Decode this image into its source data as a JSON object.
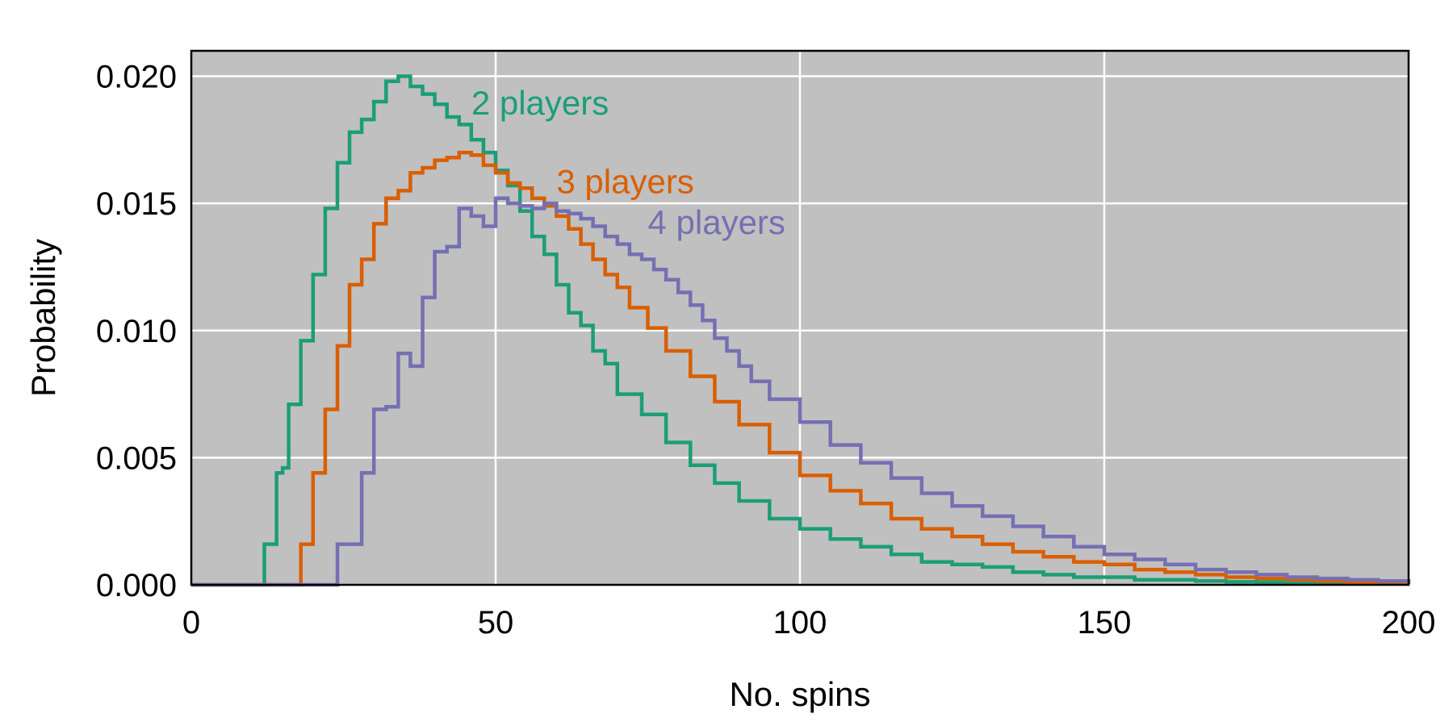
{
  "chart_data": {
    "type": "line",
    "title": "",
    "xlabel": "No. spins",
    "ylabel": "Probability",
    "xlim": [
      0,
      200
    ],
    "ylim": [
      0,
      0.021
    ],
    "xticks": [
      0,
      50,
      100,
      150,
      200
    ],
    "xtick_labels": [
      "0",
      "50",
      "100",
      "150",
      "200"
    ],
    "yticks": [
      0,
      0.005,
      0.01,
      0.015,
      0.02
    ],
    "ytick_labels": [
      "0.000",
      "0.005",
      "0.010",
      "0.015",
      "0.020"
    ],
    "grid": true,
    "legend": "inline",
    "background": "#c0c0c0",
    "series": [
      {
        "name": "2 players",
        "color": "#1b9e77",
        "label_at": [
          46,
          0.0185
        ],
        "x": [
          0,
          12,
          13,
          14,
          15,
          16,
          18,
          20,
          22,
          24,
          26,
          28,
          30,
          32,
          34,
          36,
          38,
          40,
          42,
          44,
          46,
          48,
          50,
          52,
          54,
          56,
          58,
          60,
          62,
          64,
          66,
          68,
          70,
          74,
          78,
          82,
          86,
          90,
          95,
          100,
          105,
          110,
          115,
          120,
          125,
          130,
          135,
          140,
          145,
          150,
          155,
          160,
          165,
          170,
          175,
          180,
          185,
          190,
          195,
          200
        ],
        "y": [
          0,
          0.0016,
          0.0016,
          0.0044,
          0.0046,
          0.0071,
          0.0096,
          0.0122,
          0.0148,
          0.0166,
          0.0178,
          0.0183,
          0.019,
          0.0198,
          0.02,
          0.0196,
          0.0193,
          0.0189,
          0.0184,
          0.0181,
          0.0175,
          0.017,
          0.0163,
          0.0157,
          0.0147,
          0.0137,
          0.013,
          0.0118,
          0.0107,
          0.0102,
          0.0092,
          0.0087,
          0.0075,
          0.0067,
          0.0056,
          0.0047,
          0.004,
          0.0033,
          0.0026,
          0.0022,
          0.0018,
          0.0015,
          0.0012,
          0.0009,
          0.0008,
          0.0007,
          0.0005,
          0.0004,
          0.0003,
          0.0003,
          0.0002,
          0.0002,
          0.00015,
          0.00012,
          0.0001,
          8e-05,
          6e-05,
          5e-05,
          4e-05,
          3e-05
        ]
      },
      {
        "name": "3 players",
        "color": "#d95f02",
        "label_at": [
          60,
          0.0154
        ],
        "x": [
          0,
          18,
          19,
          20,
          22,
          24,
          26,
          28,
          30,
          32,
          34,
          36,
          38,
          40,
          42,
          44,
          46,
          48,
          50,
          52,
          54,
          56,
          58,
          60,
          62,
          64,
          66,
          68,
          70,
          72,
          75,
          78,
          82,
          86,
          90,
          95,
          100,
          105,
          110,
          115,
          120,
          125,
          130,
          135,
          140,
          145,
          150,
          155,
          160,
          165,
          170,
          175,
          180,
          185,
          190,
          195,
          200
        ],
        "y": [
          0,
          0.0016,
          0.0016,
          0.0044,
          0.0069,
          0.0094,
          0.0118,
          0.0128,
          0.0142,
          0.0152,
          0.0155,
          0.0162,
          0.0164,
          0.0167,
          0.0168,
          0.017,
          0.0169,
          0.0165,
          0.0162,
          0.0158,
          0.0156,
          0.0152,
          0.0149,
          0.0145,
          0.014,
          0.0134,
          0.0128,
          0.0122,
          0.0117,
          0.0109,
          0.0101,
          0.0092,
          0.0082,
          0.0072,
          0.0063,
          0.0052,
          0.0043,
          0.0037,
          0.0032,
          0.0026,
          0.0022,
          0.0019,
          0.0016,
          0.0013,
          0.0011,
          0.0009,
          0.0008,
          0.0006,
          0.0005,
          0.0004,
          0.0003,
          0.00025,
          0.0002,
          0.00015,
          0.0001,
          8e-05,
          6e-05
        ]
      },
      {
        "name": "4 players",
        "color": "#7570b3",
        "label_at": [
          75,
          0.0138
        ],
        "x": [
          0,
          24,
          25,
          28,
          30,
          32,
          34,
          36,
          38,
          40,
          42,
          44,
          46,
          48,
          50,
          52,
          54,
          56,
          58,
          60,
          62,
          64,
          66,
          68,
          70,
          72,
          74,
          76,
          78,
          80,
          82,
          84,
          86,
          88,
          90,
          92,
          95,
          100,
          105,
          110,
          115,
          120,
          125,
          130,
          135,
          140,
          145,
          150,
          155,
          160,
          165,
          170,
          175,
          180,
          185,
          190,
          195,
          200
        ],
        "y": [
          0,
          0.0016,
          0.0016,
          0.0044,
          0.0069,
          0.007,
          0.0091,
          0.0086,
          0.0113,
          0.0131,
          0.0133,
          0.0148,
          0.0145,
          0.0141,
          0.0152,
          0.015,
          0.0149,
          0.0148,
          0.015,
          0.0147,
          0.0146,
          0.0144,
          0.0141,
          0.0137,
          0.0134,
          0.013,
          0.0128,
          0.0124,
          0.012,
          0.0115,
          0.011,
          0.0104,
          0.0097,
          0.0092,
          0.0086,
          0.008,
          0.0073,
          0.0064,
          0.0055,
          0.0048,
          0.0042,
          0.0036,
          0.0031,
          0.0027,
          0.0023,
          0.0019,
          0.0015,
          0.0012,
          0.001,
          0.0008,
          0.0006,
          0.0005,
          0.0004,
          0.0003,
          0.00025,
          0.0002,
          0.00015,
          0.0001
        ]
      }
    ]
  }
}
